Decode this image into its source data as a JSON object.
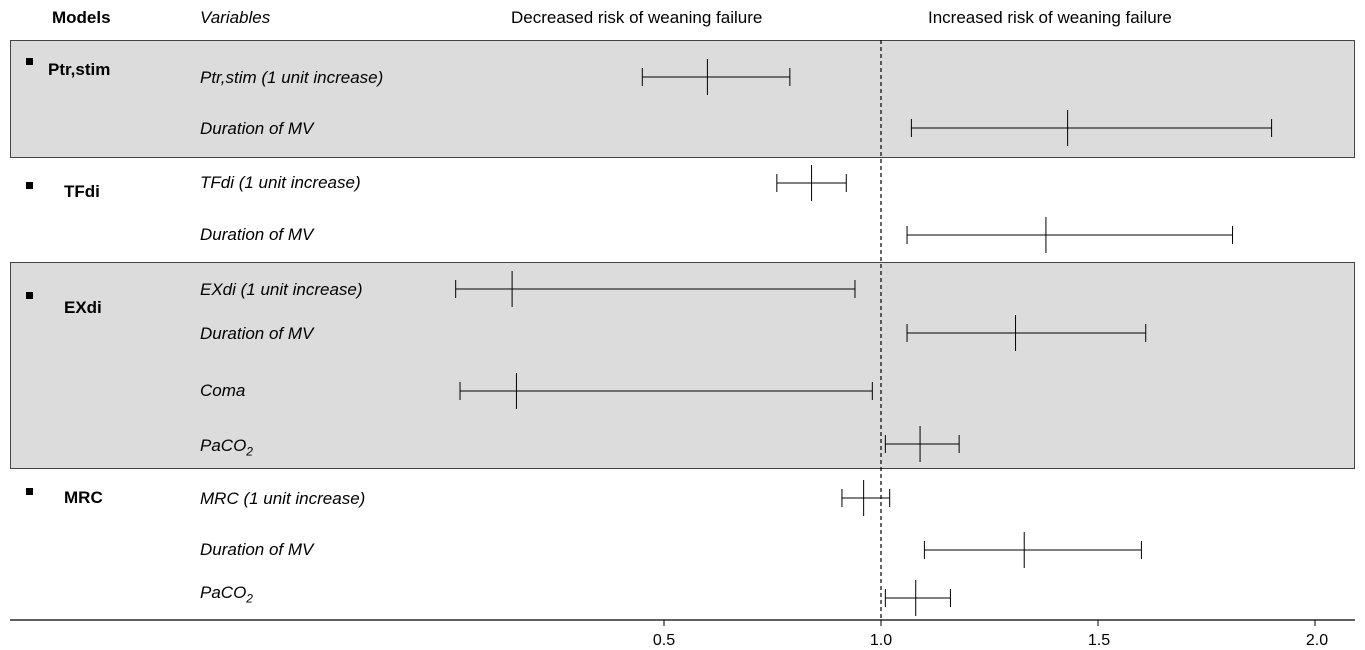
{
  "header": {
    "models": "Models",
    "variables": "Variables",
    "decreased": "Decreased risk of weaning failure",
    "increased": "Increased risk of weaning failure"
  },
  "models": [
    {
      "name": "Ptr,stim",
      "shaded": true
    },
    {
      "name": "TFdi",
      "shaded": false
    },
    {
      "name": "EXdi",
      "shaded": true
    },
    {
      "name": "MRC",
      "shaded": false
    }
  ],
  "chart_data": {
    "type": "forest",
    "xlim": [
      0,
      2.1
    ],
    "reference_line": 1.0,
    "xticks": [
      "0.5",
      "1.0",
      "1.5",
      "2.0"
    ],
    "rows": [
      {
        "model": "Ptr,stim",
        "variable": "Ptr,stim (1 unit increase)",
        "estimate": 0.6,
        "low": 0.45,
        "high": 0.79
      },
      {
        "model": "Ptr,stim",
        "variable": "Duration of MV",
        "estimate": 1.43,
        "low": 1.07,
        "high": 1.9
      },
      {
        "model": "TFdi",
        "variable": "TFdi (1 unit increase)",
        "estimate": 0.84,
        "low": 0.76,
        "high": 0.92
      },
      {
        "model": "TFdi",
        "variable": "Duration of MV",
        "estimate": 1.38,
        "low": 1.06,
        "high": 1.81
      },
      {
        "model": "EXdi",
        "variable": "EXdi (1 unit increase)",
        "estimate": 0.15,
        "low": 0.02,
        "high": 0.94
      },
      {
        "model": "EXdi",
        "variable": "Duration of MV",
        "estimate": 1.31,
        "low": 1.06,
        "high": 1.61
      },
      {
        "model": "EXdi",
        "variable": "Coma",
        "estimate": 0.16,
        "low": 0.03,
        "high": 0.98
      },
      {
        "model": "EXdi",
        "variable": "PaCO2",
        "estimate": 1.09,
        "low": 1.01,
        "high": 1.18
      },
      {
        "model": "MRC",
        "variable": "MRC (1 unit increase)",
        "estimate": 0.96,
        "low": 0.91,
        "high": 1.02
      },
      {
        "model": "MRC",
        "variable": "Duration of MV",
        "estimate": 1.33,
        "low": 1.1,
        "high": 1.6
      },
      {
        "model": "MRC",
        "variable": "PaCO2",
        "estimate": 1.08,
        "low": 1.01,
        "high": 1.16
      }
    ]
  }
}
